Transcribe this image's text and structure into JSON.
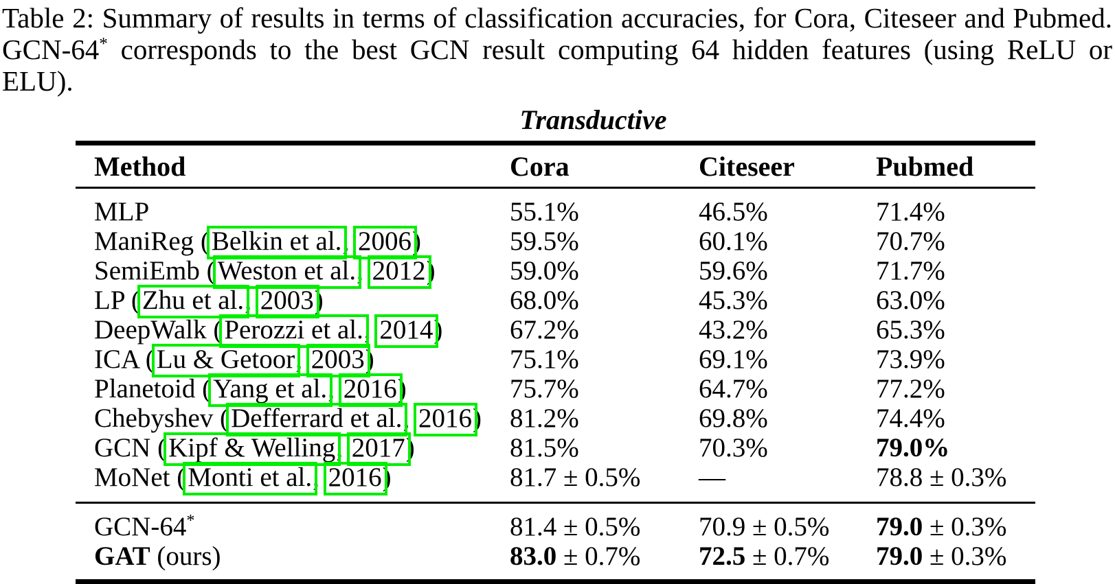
{
  "accent": {
    "link_box_color": "#00ee00"
  },
  "caption": {
    "line1": "Table 2: Summary of results in terms of classification accuracies, for Cora, Citeseer and Pubmed.",
    "line2_parts": [
      {
        "t": "GCN-64"
      },
      {
        "t": "*",
        "sup": true
      },
      {
        "t": " corresponds to the best GCN result computing 64 hidden features (using ReLU or ELU)."
      }
    ]
  },
  "table": {
    "group_label": "Transductive",
    "columns": [
      "Method",
      "Cora",
      "Citeseer",
      "Pubmed"
    ],
    "rows": [
      {
        "method": [
          {
            "t": "MLP"
          }
        ],
        "values": [
          [
            {
              "t": "55.1%"
            }
          ],
          [
            {
              "t": "46.5%"
            }
          ],
          [
            {
              "t": "71.4%"
            }
          ]
        ]
      },
      {
        "method": [
          {
            "t": "ManiReg ("
          },
          {
            "t": "Belkin et al.",
            "link": true
          },
          {
            "t": ", "
          },
          {
            "t": "2006",
            "link": true
          },
          {
            "t": ")"
          }
        ],
        "values": [
          [
            {
              "t": "59.5%"
            }
          ],
          [
            {
              "t": "60.1%"
            }
          ],
          [
            {
              "t": "70.7%"
            }
          ]
        ]
      },
      {
        "method": [
          {
            "t": "SemiEmb ("
          },
          {
            "t": "Weston et al.",
            "link": true
          },
          {
            "t": ", "
          },
          {
            "t": "2012",
            "link": true
          },
          {
            "t": ")"
          }
        ],
        "values": [
          [
            {
              "t": "59.0%"
            }
          ],
          [
            {
              "t": "59.6%"
            }
          ],
          [
            {
              "t": "71.7%"
            }
          ]
        ]
      },
      {
        "method": [
          {
            "t": "LP ("
          },
          {
            "t": "Zhu et al.",
            "link": true
          },
          {
            "t": ", "
          },
          {
            "t": "2003",
            "link": true
          },
          {
            "t": ")"
          }
        ],
        "values": [
          [
            {
              "t": "68.0%"
            }
          ],
          [
            {
              "t": "45.3%"
            }
          ],
          [
            {
              "t": "63.0%"
            }
          ]
        ]
      },
      {
        "method": [
          {
            "t": "DeepWalk ("
          },
          {
            "t": "Perozzi et al.",
            "link": true
          },
          {
            "t": ", "
          },
          {
            "t": "2014",
            "link": true
          },
          {
            "t": ")"
          }
        ],
        "values": [
          [
            {
              "t": "67.2%"
            }
          ],
          [
            {
              "t": "43.2%"
            }
          ],
          [
            {
              "t": "65.3%"
            }
          ]
        ]
      },
      {
        "method": [
          {
            "t": "ICA ("
          },
          {
            "t": "Lu & Getoor",
            "link": true
          },
          {
            "t": ", "
          },
          {
            "t": "2003",
            "link": true
          },
          {
            "t": ")"
          }
        ],
        "values": [
          [
            {
              "t": "75.1%"
            }
          ],
          [
            {
              "t": "69.1%"
            }
          ],
          [
            {
              "t": "73.9%"
            }
          ]
        ]
      },
      {
        "method": [
          {
            "t": "Planetoid ("
          },
          {
            "t": "Yang et al.",
            "link": true
          },
          {
            "t": ", "
          },
          {
            "t": "2016",
            "link": true
          },
          {
            "t": ")"
          }
        ],
        "values": [
          [
            {
              "t": "75.7%"
            }
          ],
          [
            {
              "t": "64.7%"
            }
          ],
          [
            {
              "t": "77.2%"
            }
          ]
        ]
      },
      {
        "method": [
          {
            "t": "Chebyshev ("
          },
          {
            "t": "Defferrard et al.",
            "link": true
          },
          {
            "t": ", "
          },
          {
            "t": "2016",
            "link": true
          },
          {
            "t": ")"
          }
        ],
        "values": [
          [
            {
              "t": "81.2%"
            }
          ],
          [
            {
              "t": "69.8%"
            }
          ],
          [
            {
              "t": "74.4%"
            }
          ]
        ]
      },
      {
        "method": [
          {
            "t": "GCN ("
          },
          {
            "t": "Kipf & Welling",
            "link": true
          },
          {
            "t": ", "
          },
          {
            "t": "2017",
            "link": true
          },
          {
            "t": ")"
          }
        ],
        "values": [
          [
            {
              "t": "81.5%"
            }
          ],
          [
            {
              "t": "70.3%"
            }
          ],
          [
            {
              "t": "79.0%",
              "b": true
            }
          ]
        ]
      },
      {
        "method": [
          {
            "t": "MoNet ("
          },
          {
            "t": "Monti et al.",
            "link": true
          },
          {
            "t": ", "
          },
          {
            "t": "2016",
            "link": true
          },
          {
            "t": ")"
          }
        ],
        "values": [
          [
            {
              "t": "81.7 ± 0.5%"
            }
          ],
          [
            {
              "t": "—"
            }
          ],
          [
            {
              "t": "78.8 ± 0.3%"
            }
          ]
        ]
      }
    ],
    "footer_rows": [
      {
        "method": [
          {
            "t": "GCN-64"
          },
          {
            "t": "*",
            "sup": true
          }
        ],
        "values": [
          [
            {
              "t": "81.4 ± 0.5%"
            }
          ],
          [
            {
              "t": "70.9 ± 0.5%"
            }
          ],
          [
            {
              "t": "79.0",
              "b": true
            },
            {
              "t": " ± 0.3%"
            }
          ]
        ]
      },
      {
        "method": [
          {
            "t": "GAT",
            "b": true
          },
          {
            "t": " (ours)"
          }
        ],
        "values": [
          [
            {
              "t": "83.0",
              "b": true
            },
            {
              "t": " ± 0.7%"
            }
          ],
          [
            {
              "t": "72.5",
              "b": true
            },
            {
              "t": " ± 0.7%"
            }
          ],
          [
            {
              "t": "79.0",
              "b": true
            },
            {
              "t": " ± 0.3%"
            }
          ]
        ]
      }
    ]
  }
}
